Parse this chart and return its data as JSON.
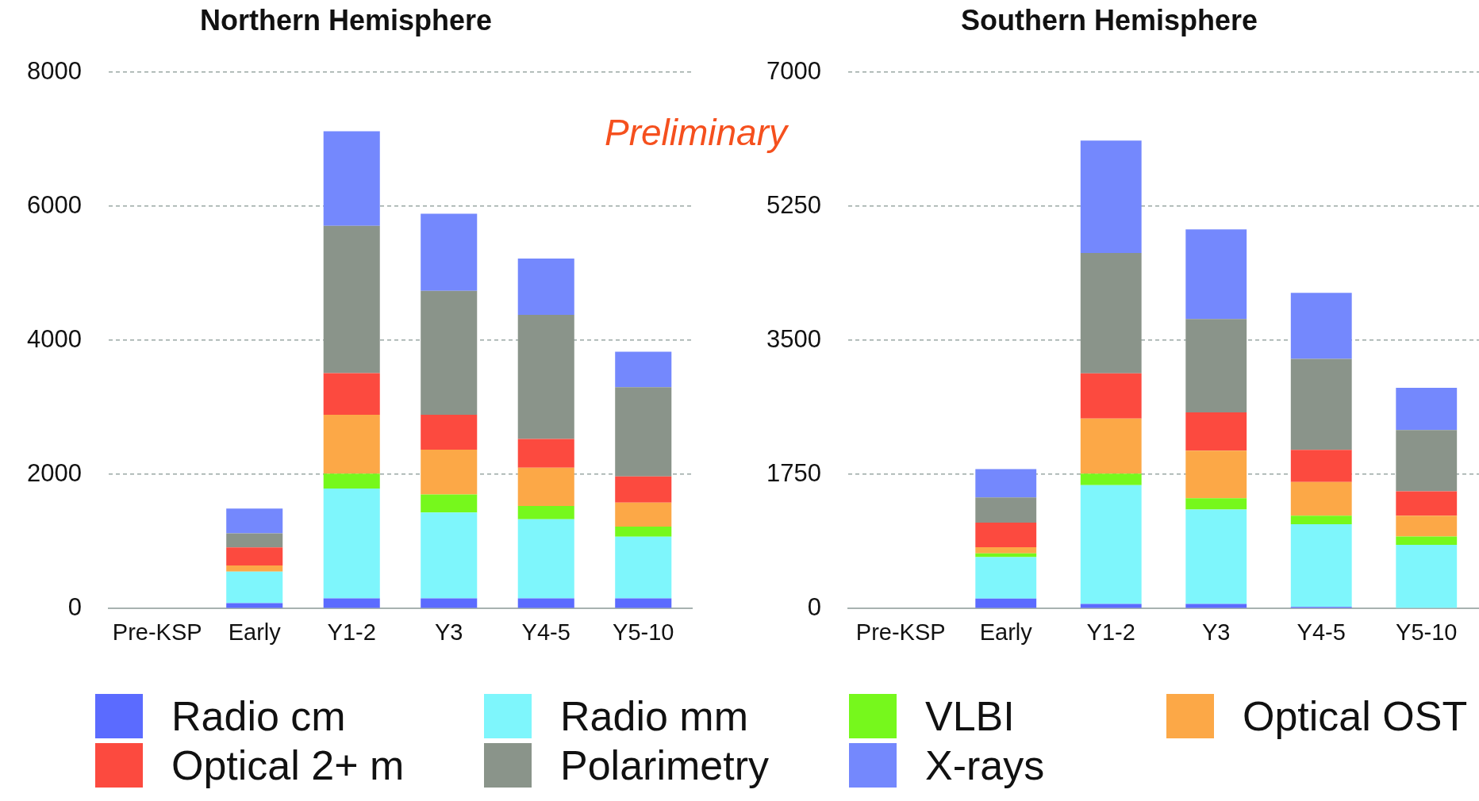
{
  "chart_data": [
    {
      "type": "bar",
      "title": "Northern Hemisphere",
      "stacked": true,
      "categories": [
        "Pre-KSP",
        "Early",
        "Y1-2",
        "Y3",
        "Y4-5",
        "Y5-10"
      ],
      "ylim": [
        0,
        8000
      ],
      "yticks": [
        0,
        2000,
        4000,
        6000,
        8000
      ],
      "grid": "y",
      "legend": "bottom",
      "annotations": [
        "Preliminary"
      ],
      "series": [
        {
          "name": "Radio cm",
          "color": "#5b6bff",
          "values": [
            0,
            80,
            150,
            150,
            150,
            150
          ]
        },
        {
          "name": "Radio mm",
          "color": "#7ef6fc",
          "values": [
            0,
            470,
            1640,
            1280,
            1180,
            920
          ]
        },
        {
          "name": "VLBI",
          "color": "#76f81c",
          "values": [
            0,
            0,
            220,
            270,
            200,
            150
          ]
        },
        {
          "name": "Optical OST",
          "color": "#fca847",
          "values": [
            0,
            90,
            880,
            670,
            570,
            360
          ]
        },
        {
          "name": "Optical 2+ m",
          "color": "#fc4a3f",
          "values": [
            0,
            270,
            620,
            520,
            430,
            390
          ]
        },
        {
          "name": "Polarimetry",
          "color": "#8a948a",
          "values": [
            0,
            210,
            2200,
            1850,
            1850,
            1330
          ]
        },
        {
          "name": "X-rays",
          "color": "#7488fd",
          "values": [
            0,
            370,
            1410,
            1150,
            840,
            530
          ]
        }
      ]
    },
    {
      "type": "bar",
      "title": "Southern Hemisphere",
      "stacked": true,
      "categories": [
        "Pre-KSP",
        "Early",
        "Y1-2",
        "Y3",
        "Y4-5",
        "Y5-10"
      ],
      "ylim": [
        0,
        7000
      ],
      "yticks": [
        0,
        1750,
        3500,
        5250,
        7000
      ],
      "grid": "y",
      "series": [
        {
          "color": "#5b6bff",
          "values": [
            0,
            130,
            60,
            60,
            20,
            0
          ]
        },
        {
          "color": "#7ef6fc",
          "values": [
            0,
            540,
            1550,
            1230,
            1080,
            830
          ]
        },
        {
          "color": "#76f81c",
          "values": [
            0,
            50,
            150,
            150,
            110,
            110
          ]
        },
        {
          "color": "#fca847",
          "values": [
            0,
            80,
            720,
            620,
            440,
            270
          ]
        },
        {
          "color": "#fc4a3f",
          "values": [
            0,
            320,
            590,
            500,
            420,
            320
          ]
        },
        {
          "color": "#8a948a",
          "values": [
            0,
            330,
            1570,
            1220,
            1190,
            800
          ]
        },
        {
          "color": "#7488fd",
          "values": [
            0,
            370,
            1470,
            1170,
            860,
            550
          ]
        }
      ]
    }
  ]
}
